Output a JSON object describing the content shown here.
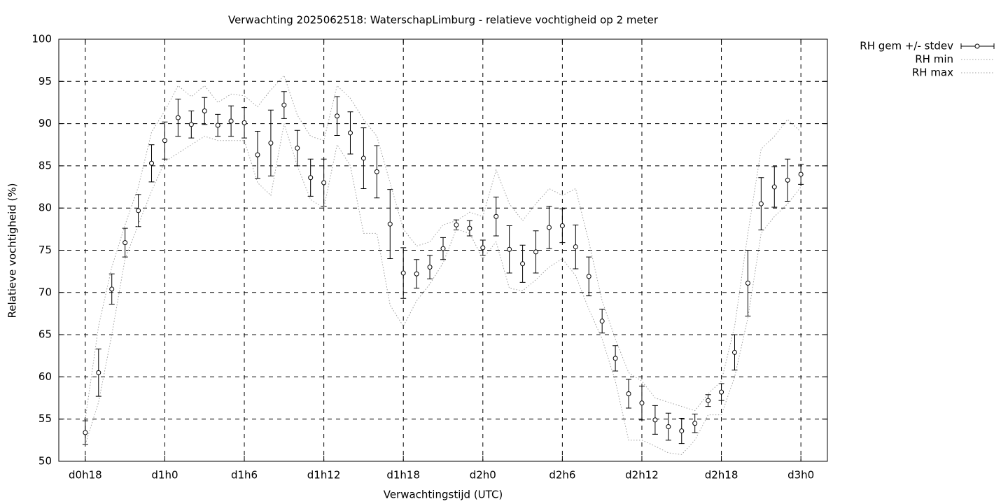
{
  "chart_data": {
    "type": "errorbar",
    "title": "Verwachting 2025062518: WaterschapLimburg - relatieve vochtigheid op 2 meter",
    "xlabel": "Verwachtingstijd (UTC)",
    "ylabel": "Relatieve vochtigheid (%)",
    "x": [
      18,
      19,
      20,
      21,
      22,
      23,
      24,
      25,
      26,
      27,
      28,
      29,
      30,
      31,
      32,
      33,
      34,
      35,
      36,
      37,
      38,
      39,
      40,
      41,
      42,
      43,
      44,
      45,
      46,
      47,
      48,
      49,
      50,
      51,
      52,
      53,
      54,
      55,
      56,
      57,
      58,
      59,
      60,
      61,
      62,
      63,
      64,
      65,
      66,
      67,
      68,
      69,
      70,
      71,
      72
    ],
    "xlim": [
      16,
      74
    ],
    "xticks": [
      {
        "value": 18,
        "label": "d0h18"
      },
      {
        "value": 24,
        "label": "d1h0"
      },
      {
        "value": 30,
        "label": "d1h6"
      },
      {
        "value": 36,
        "label": "d1h12"
      },
      {
        "value": 42,
        "label": "d1h18"
      },
      {
        "value": 48,
        "label": "d2h0"
      },
      {
        "value": 54,
        "label": "d2h6"
      },
      {
        "value": 60,
        "label": "d2h12"
      },
      {
        "value": 66,
        "label": "d2h18"
      },
      {
        "value": 72,
        "label": "d3h0"
      }
    ],
    "ylim": [
      50,
      100
    ],
    "yticks": [
      50,
      55,
      60,
      65,
      70,
      75,
      80,
      85,
      90,
      95,
      100
    ],
    "grid": true,
    "legend": "outside-top-right",
    "series": [
      {
        "name": "RH gem +/- stdev",
        "color": "#000000",
        "style": "errorbar",
        "values": [
          53.4,
          60.5,
          70.4,
          75.9,
          79.7,
          85.3,
          88.0,
          90.7,
          89.9,
          91.5,
          89.8,
          90.3,
          90.1,
          86.3,
          87.7,
          92.2,
          87.1,
          83.6,
          83.0,
          90.9,
          88.9,
          85.9,
          84.3,
          78.1,
          72.3,
          72.2,
          73.0,
          75.2,
          78.0,
          77.6,
          75.3,
          79.0,
          75.1,
          73.4,
          74.8,
          77.7,
          77.9,
          75.4,
          71.9,
          66.6,
          62.2,
          58.0,
          56.9,
          54.9,
          54.1,
          53.6,
          54.5,
          57.2,
          58.2,
          62.9,
          71.1,
          80.5,
          82.5,
          83.3,
          84.0
        ],
        "errors": [
          1.4,
          2.8,
          1.8,
          1.7,
          1.9,
          2.2,
          2.2,
          2.2,
          1.6,
          1.6,
          1.3,
          1.8,
          1.8,
          2.8,
          3.9,
          1.6,
          2.1,
          2.2,
          2.8,
          2.3,
          2.5,
          3.6,
          3.1,
          4.1,
          3.0,
          1.7,
          1.4,
          1.3,
          0.6,
          0.9,
          0.9,
          2.3,
          2.8,
          2.2,
          2.5,
          2.5,
          2.0,
          2.6,
          2.3,
          1.4,
          1.5,
          1.7,
          2.0,
          1.7,
          1.6,
          1.5,
          1.1,
          0.7,
          1.0,
          2.1,
          3.9,
          3.1,
          2.4,
          2.5,
          1.2
        ]
      },
      {
        "name": "RH min",
        "color": "#a0a0a0",
        "style": "dotted",
        "values": [
          52,
          57,
          65,
          74,
          78,
          82,
          85.5,
          86.5,
          87.5,
          88.5,
          88,
          88,
          88,
          83,
          81.5,
          90,
          85,
          81,
          80,
          87.5,
          85,
          77,
          77,
          68.5,
          66,
          69,
          71,
          73.5,
          77.5,
          77,
          74,
          76,
          70.5,
          70.2,
          71.5,
          73,
          74,
          72,
          68,
          64.5,
          59.5,
          52.5,
          52.5,
          51.8,
          51,
          50.8,
          52.5,
          55.5,
          55.5,
          60,
          67,
          77,
          79,
          80.5,
          82.5
        ]
      },
      {
        "name": "RH max",
        "color": "#a0a0a0",
        "style": "dotted",
        "values": [
          55,
          66,
          73,
          78,
          82.5,
          89,
          91.5,
          94.5,
          93.2,
          94.5,
          92.5,
          93.5,
          93.3,
          92,
          94,
          95.7,
          91,
          88.5,
          88,
          94.5,
          93,
          90.5,
          88.5,
          83,
          77.5,
          75.5,
          76,
          78,
          78.5,
          79.5,
          79,
          84.5,
          80.5,
          78.5,
          80.5,
          82.3,
          81.5,
          82.3,
          76,
          69,
          64.5,
          60.5,
          59.5,
          57.5,
          57,
          56.5,
          56,
          58,
          59.5,
          66,
          77,
          87,
          88.5,
          90.5,
          89
        ]
      }
    ]
  }
}
